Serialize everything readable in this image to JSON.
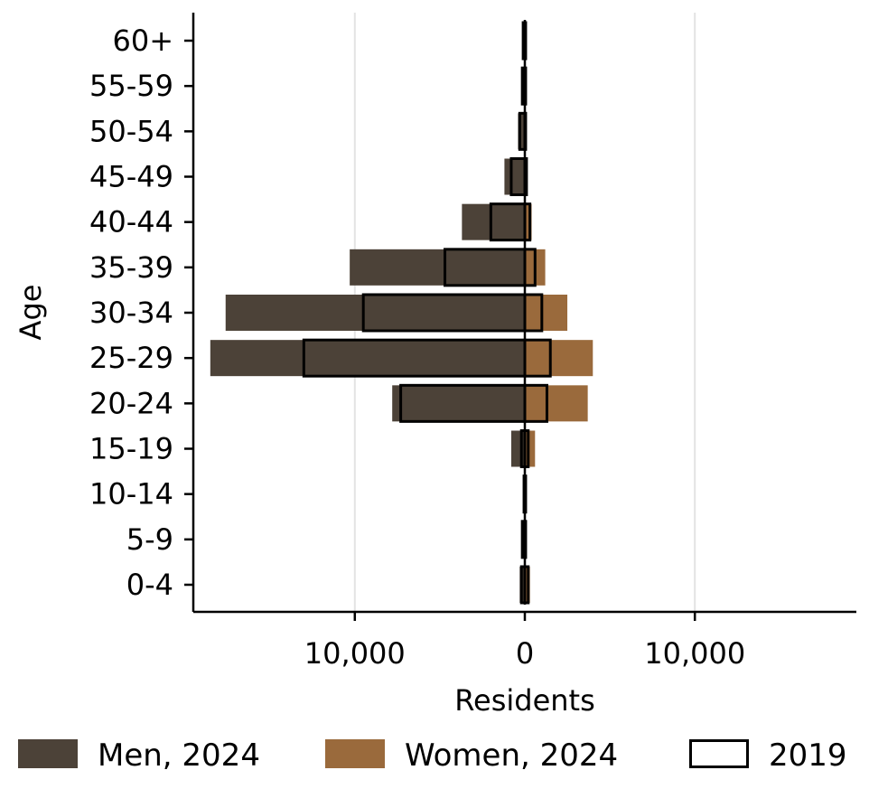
{
  "chart_data": {
    "type": "bar",
    "orientation": "horizontal",
    "subtype": "population-pyramid",
    "title": "",
    "xlabel": "Residents",
    "ylabel": "Age",
    "categories": [
      "0-4",
      "5-9",
      "10-14",
      "15-19",
      "20-24",
      "25-29",
      "30-34",
      "35-39",
      "40-44",
      "45-49",
      "50-54",
      "55-59",
      "60+"
    ],
    "x_tick_labels": [
      "10,000",
      "0",
      "10,000"
    ],
    "x_ticks": [
      -10000,
      0,
      10000
    ],
    "xlim": [
      -19500,
      19500
    ],
    "grid": "vertical",
    "legend_position": "bottom",
    "series": [
      {
        "name": "Men, 2024",
        "side": "left",
        "style": "filled",
        "color": "#4c4238",
        "values": [
          300,
          150,
          50,
          800,
          7800,
          18500,
          17600,
          10300,
          3700,
          1200,
          400,
          150,
          100
        ]
      },
      {
        "name": "Women, 2024",
        "side": "right",
        "style": "filled",
        "color": "#9a6a3c",
        "values": [
          300,
          100,
          50,
          600,
          3700,
          4000,
          2500,
          1200,
          400,
          150,
          50,
          50,
          50
        ]
      },
      {
        "name": "2019 (men)",
        "side": "left",
        "style": "outline",
        "color": "#000000",
        "values": [
          200,
          150,
          50,
          200,
          7300,
          13000,
          9500,
          4700,
          2000,
          800,
          300,
          150,
          100
        ]
      },
      {
        "name": "2019 (women)",
        "side": "right",
        "style": "outline",
        "color": "#000000",
        "values": [
          200,
          50,
          50,
          200,
          1300,
          1500,
          1000,
          600,
          300,
          100,
          50,
          50,
          50
        ]
      }
    ],
    "legend": [
      {
        "label": "Men, 2024",
        "swatch": "filled",
        "color": "#4c4238"
      },
      {
        "label": "Women, 2024",
        "swatch": "filled",
        "color": "#9a6a3c"
      },
      {
        "label": "2019",
        "swatch": "outline",
        "color": "#000000"
      }
    ]
  }
}
